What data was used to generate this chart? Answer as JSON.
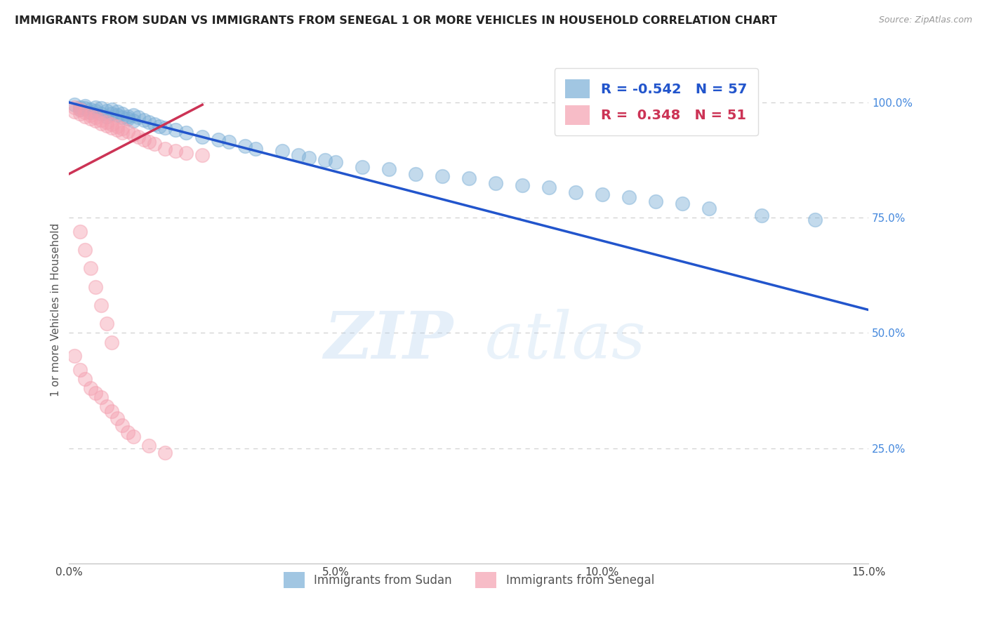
{
  "title": "IMMIGRANTS FROM SUDAN VS IMMIGRANTS FROM SENEGAL 1 OR MORE VEHICLES IN HOUSEHOLD CORRELATION CHART",
  "source_text": "Source: ZipAtlas.com",
  "ylabel": "1 or more Vehicles in Household",
  "xlim": [
    0.0,
    0.15
  ],
  "ylim": [
    0.0,
    1.1
  ],
  "xtick_labels": [
    "0.0%",
    "5.0%",
    "10.0%",
    "15.0%"
  ],
  "xtick_vals": [
    0.0,
    0.05,
    0.1,
    0.15
  ],
  "ytick_labels": [
    "25.0%",
    "50.0%",
    "75.0%",
    "100.0%"
  ],
  "ytick_vals": [
    0.25,
    0.5,
    0.75,
    1.0
  ],
  "blue_R": -0.542,
  "blue_N": 57,
  "pink_R": 0.348,
  "pink_N": 51,
  "blue_color": "#7aaed6",
  "pink_color": "#f4a0b0",
  "blue_line_color": "#2255cc",
  "pink_line_color": "#cc3355",
  "watermark_zip": "ZIP",
  "watermark_atlas": "atlas",
  "legend_label_blue": "Immigrants from Sudan",
  "legend_label_pink": "Immigrants from Senegal",
  "blue_scatter_x": [
    0.001,
    0.002,
    0.002,
    0.003,
    0.003,
    0.004,
    0.004,
    0.005,
    0.005,
    0.006,
    0.006,
    0.007,
    0.007,
    0.008,
    0.008,
    0.009,
    0.009,
    0.01,
    0.01,
    0.011,
    0.011,
    0.012,
    0.012,
    0.013,
    0.014,
    0.015,
    0.016,
    0.017,
    0.018,
    0.02,
    0.022,
    0.025,
    0.028,
    0.03,
    0.033,
    0.035,
    0.04,
    0.043,
    0.045,
    0.048,
    0.05,
    0.055,
    0.06,
    0.065,
    0.07,
    0.075,
    0.08,
    0.085,
    0.09,
    0.095,
    0.1,
    0.105,
    0.11,
    0.115,
    0.12,
    0.13,
    0.14
  ],
  "blue_scatter_y": [
    0.995,
    0.99,
    0.985,
    0.992,
    0.988,
    0.985,
    0.978,
    0.99,
    0.982,
    0.988,
    0.975,
    0.982,
    0.97,
    0.985,
    0.975,
    0.98,
    0.972,
    0.975,
    0.968,
    0.97,
    0.965,
    0.972,
    0.96,
    0.968,
    0.962,
    0.958,
    0.952,
    0.948,
    0.945,
    0.94,
    0.935,
    0.925,
    0.92,
    0.915,
    0.905,
    0.9,
    0.895,
    0.885,
    0.88,
    0.875,
    0.87,
    0.86,
    0.855,
    0.845,
    0.84,
    0.835,
    0.825,
    0.82,
    0.815,
    0.805,
    0.8,
    0.795,
    0.785,
    0.78,
    0.77,
    0.755,
    0.745
  ],
  "pink_scatter_x": [
    0.001,
    0.001,
    0.002,
    0.002,
    0.003,
    0.003,
    0.004,
    0.004,
    0.005,
    0.005,
    0.006,
    0.006,
    0.007,
    0.007,
    0.008,
    0.008,
    0.009,
    0.009,
    0.01,
    0.01,
    0.011,
    0.012,
    0.013,
    0.014,
    0.015,
    0.016,
    0.018,
    0.02,
    0.022,
    0.025,
    0.002,
    0.003,
    0.004,
    0.005,
    0.006,
    0.007,
    0.008,
    0.001,
    0.002,
    0.003,
    0.004,
    0.005,
    0.006,
    0.007,
    0.008,
    0.009,
    0.01,
    0.011,
    0.012,
    0.015,
    0.018
  ],
  "pink_scatter_y": [
    0.99,
    0.98,
    0.985,
    0.975,
    0.978,
    0.97,
    0.972,
    0.965,
    0.968,
    0.96,
    0.962,
    0.955,
    0.958,
    0.95,
    0.952,
    0.945,
    0.948,
    0.94,
    0.943,
    0.935,
    0.938,
    0.93,
    0.925,
    0.92,
    0.915,
    0.91,
    0.9,
    0.895,
    0.89,
    0.885,
    0.72,
    0.68,
    0.64,
    0.6,
    0.56,
    0.52,
    0.48,
    0.45,
    0.42,
    0.4,
    0.38,
    0.37,
    0.36,
    0.34,
    0.33,
    0.315,
    0.3,
    0.285,
    0.275,
    0.255,
    0.24
  ],
  "blue_trend_x": [
    0.0,
    0.15
  ],
  "blue_trend_y": [
    1.0,
    0.55
  ],
  "pink_trend_x": [
    0.0,
    0.025
  ],
  "pink_trend_y": [
    0.845,
    0.995
  ]
}
